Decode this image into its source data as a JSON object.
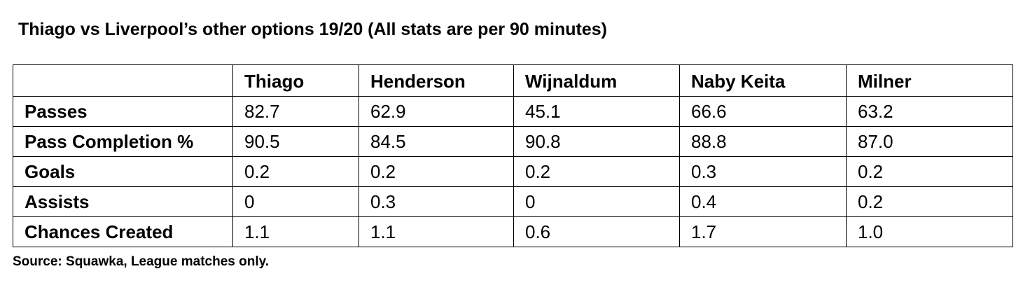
{
  "title": "Thiago vs Liverpool’s other options 19/20 (All stats are per 90 minutes)",
  "table": {
    "header": [
      "",
      "Thiago",
      "Henderson",
      "Wijnaldum",
      "Naby Keita",
      "Milner"
    ],
    "rows": [
      [
        "Passes",
        "82.7",
        "62.9",
        "45.1",
        "66.6",
        "63.2"
      ],
      [
        "Pass Completion %",
        "90.5",
        "84.5",
        "90.8",
        "88.8",
        "87.0"
      ],
      [
        "Goals",
        "0.2",
        "0.2",
        "0.2",
        "0.3",
        "0.2"
      ],
      [
        "Assists",
        "0",
        "0.3",
        "0",
        "0.4",
        "0.2"
      ],
      [
        "Chances Created",
        "1.1",
        "1.1",
        "0.6",
        "1.7",
        "1.0"
      ]
    ]
  },
  "source": "Source: Squawka, League matches only."
}
